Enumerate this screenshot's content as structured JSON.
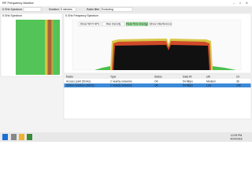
{
  "window": {
    "title": "RF Frequency Monitor"
  },
  "toolbar": {
    "view": "5 GHz Spectrum",
    "duration_label": "Duration",
    "duration": "5 minutes",
    "filter_label": "Radio filter",
    "filter": "Excluding"
  },
  "left_panel": {
    "title": "5 GHz Spectrum"
  },
  "spectrum_panel": {
    "title": "5 GHz Frequency Spectrum",
    "buttons": [
      "Show Wi-Fi APs",
      "Max Density",
      "Real-Time Energy",
      "Show Interference"
    ]
  },
  "table": {
    "headers": [
      "Radio",
      "Type",
      "Status",
      "Data Rt",
      "Util",
      "Ch"
    ],
    "rows": [
      [
        "Access point (5GHz)",
        "2 nearby networks",
        "OK",
        "54 Mbps",
        "Medium",
        "36"
      ],
      [
        "Station wireless (5GHz)",
        "2 nearby networks",
        "OK",
        "54 Mbps",
        "Low",
        "149"
      ]
    ]
  },
  "taskbar": {
    "time": "12:09 PM",
    "date": "4/24/2018"
  }
}
